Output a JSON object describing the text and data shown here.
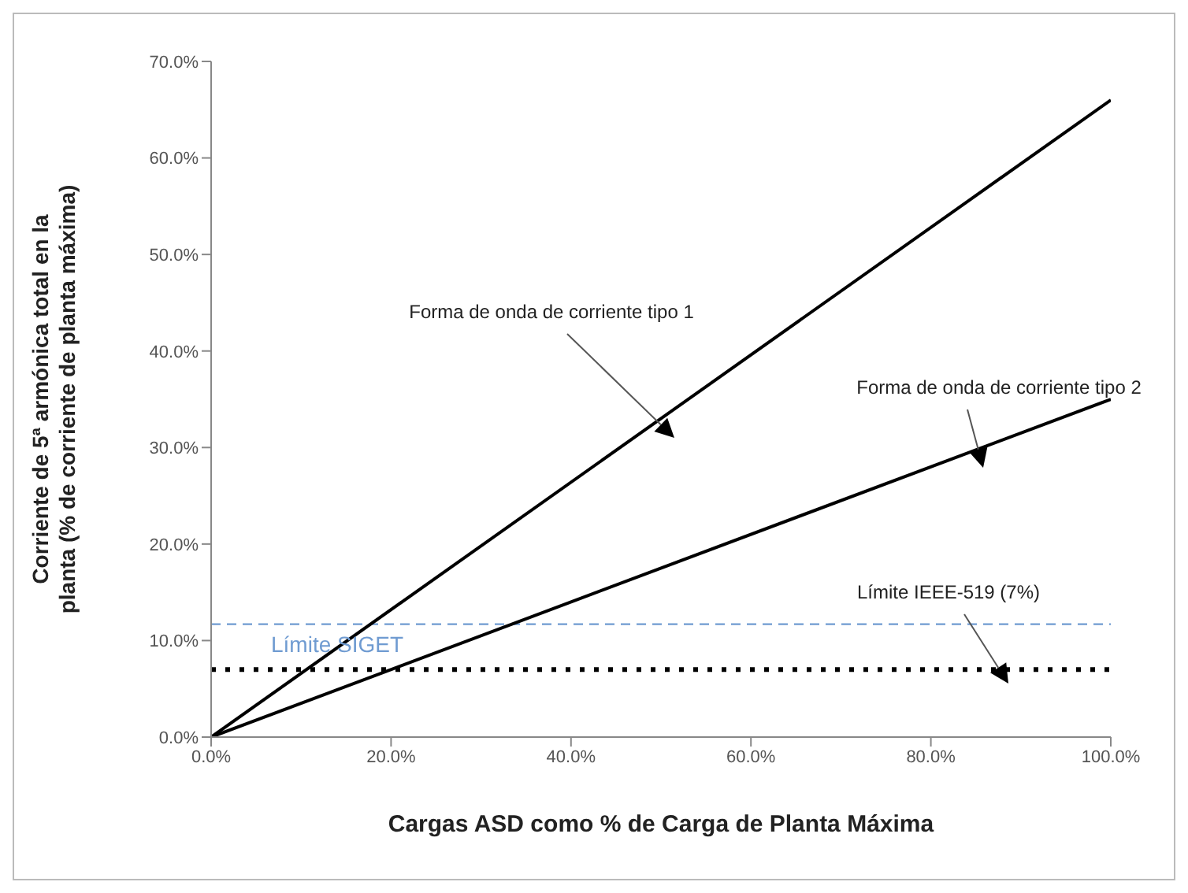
{
  "chart_data": {
    "type": "line",
    "xlabel": "Cargas ASD como % de Carga de Planta Máxima",
    "ylabel": "Corriente de 5ª armónica total en la planta (% de corriente de planta máxima)",
    "x": [
      0,
      100
    ],
    "series": [
      {
        "color": "#000000",
        "values": [
          0,
          66
        ]
      },
      {
        "color": "#000000",
        "values": [
          0,
          35
        ]
      }
    ],
    "xlim": [
      0,
      100
    ],
    "ylim": [
      0,
      70
    ],
    "xticks": [
      {
        "value": 0,
        "label": "0.0%"
      },
      {
        "value": 20,
        "label": "20.0%"
      },
      {
        "value": 40,
        "label": "40.0%"
      },
      {
        "value": 60,
        "label": "60.0%"
      },
      {
        "value": 80,
        "label": "80.0%"
      },
      {
        "value": 100,
        "label": "100.0%"
      }
    ],
    "yticks": [
      {
        "value": 0,
        "label": "0.0%"
      },
      {
        "value": 10,
        "label": "10.0%"
      },
      {
        "value": 20,
        "label": "20.0%"
      },
      {
        "value": 30,
        "label": "30.0%"
      },
      {
        "value": 40,
        "label": "40.0%"
      },
      {
        "value": 50,
        "label": "50.0%"
      },
      {
        "value": 60,
        "label": "60.0%"
      },
      {
        "value": 70,
        "label": "70.0%"
      }
    ],
    "ref_lines": [
      {
        "axis": "y",
        "value": 11.7,
        "label": "Límite SIGET",
        "color": "#6f9bd1",
        "line_style": "dashed"
      },
      {
        "axis": "y",
        "value": 7,
        "color": "#000000",
        "line_style": "dotted"
      }
    ],
    "annotations": [
      "Forma de onda de corriente tipo 1",
      "Forma de onda de corriente tipo 2",
      "Límite IEEE-519 (7%)"
    ],
    "grid": false,
    "legend": false,
    "marker": "none",
    "line_style": "solid"
  }
}
